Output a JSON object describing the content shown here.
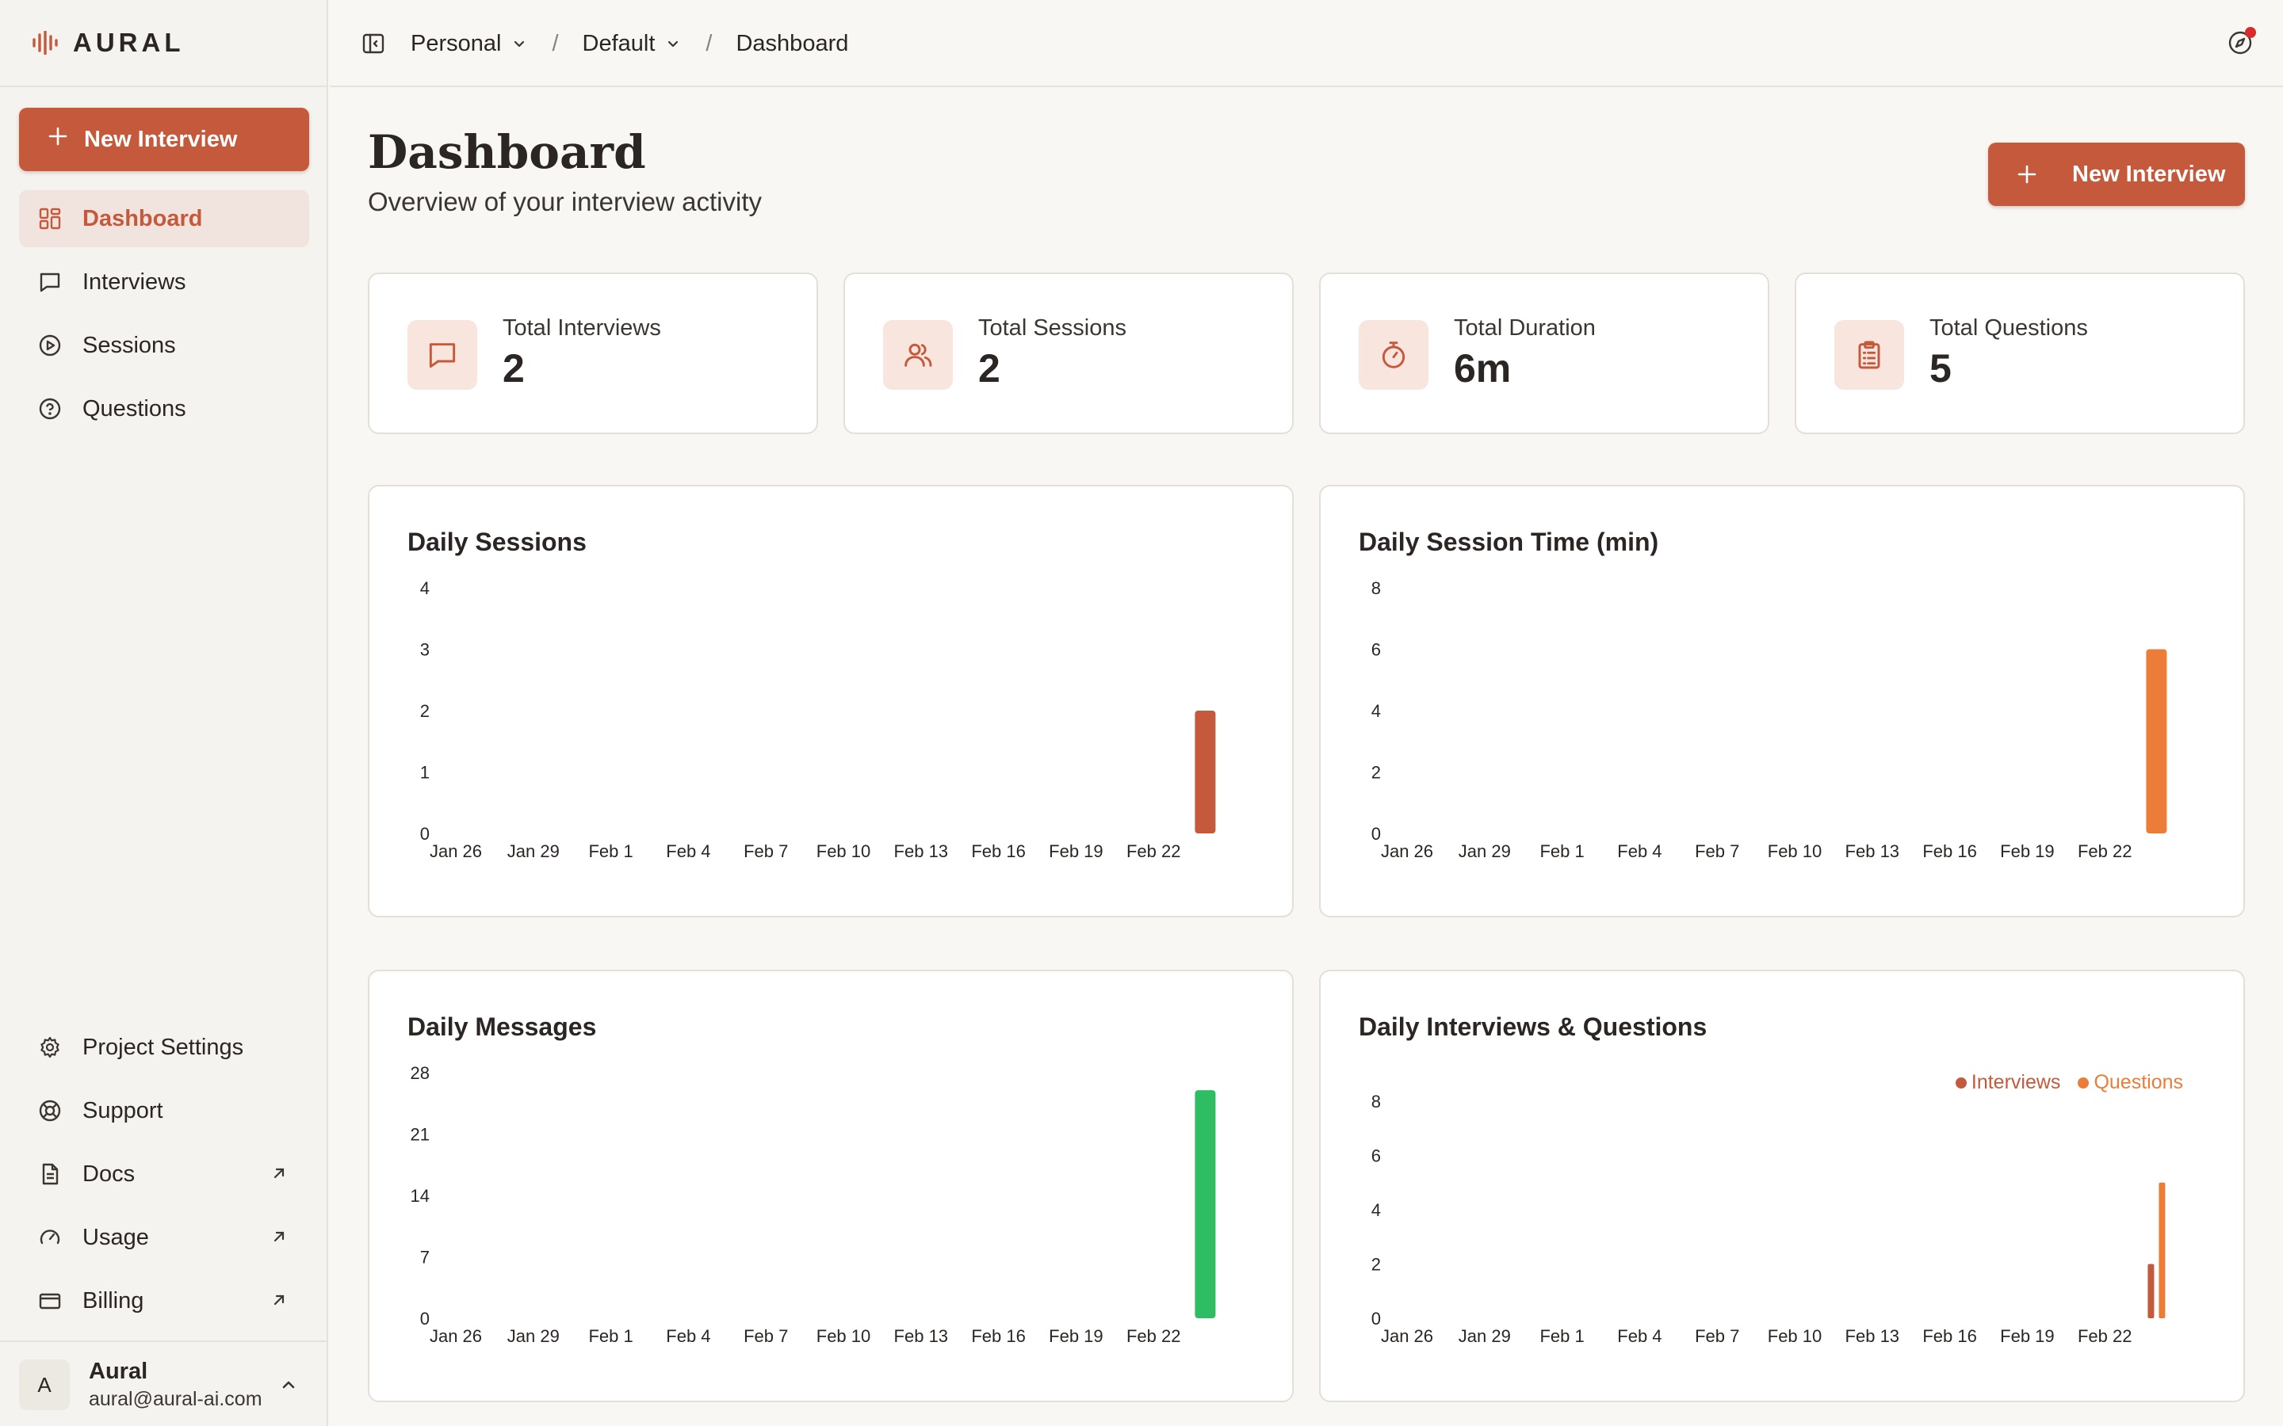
{
  "app": {
    "logo_text": "AURAL"
  },
  "sidebar": {
    "new_button": "New Interview",
    "nav": [
      {
        "label": "Dashboard",
        "icon": "grid-icon",
        "active": true
      },
      {
        "label": "Interviews",
        "icon": "message-icon"
      },
      {
        "label": "Sessions",
        "icon": "play-circle-icon"
      },
      {
        "label": "Questions",
        "icon": "help-circle-icon"
      }
    ],
    "bottom": [
      {
        "label": "Project Settings",
        "icon": "gear-icon"
      },
      {
        "label": "Support",
        "icon": "lifebuoy-icon"
      },
      {
        "label": "Docs",
        "icon": "document-icon",
        "external": true
      },
      {
        "label": "Usage",
        "icon": "gauge-icon",
        "external": true
      },
      {
        "label": "Billing",
        "icon": "credit-card-icon",
        "external": true
      }
    ],
    "user": {
      "initial": "A",
      "name": "Aural",
      "email": "aural@aural-ai.com"
    }
  },
  "breadcrumb": {
    "workspace": "Personal",
    "project": "Default",
    "page": "Dashboard",
    "separator": "/"
  },
  "header": {
    "title": "Dashboard",
    "subtitle": "Overview of your interview activity",
    "new_button": "New Interview"
  },
  "stats": [
    {
      "label": "Total Interviews",
      "value": "2",
      "icon": "message-icon"
    },
    {
      "label": "Total Sessions",
      "value": "2",
      "icon": "users-icon"
    },
    {
      "label": "Total Duration",
      "value": "6m",
      "icon": "stopwatch-icon"
    },
    {
      "label": "Total Questions",
      "value": "5",
      "icon": "clipboard-icon"
    }
  ],
  "colors": {
    "accent": "#c45a3b",
    "orange": "#ec7d39",
    "green": "#2ebd62"
  },
  "chart_data": [
    {
      "type": "bar",
      "title": "Daily Sessions",
      "xticks": [
        "Jan 26",
        "Jan 29",
        "Feb 1",
        "Feb 4",
        "Feb 7",
        "Feb 10",
        "Feb 13",
        "Feb 16",
        "Feb 19",
        "Feb 22"
      ],
      "yticks": [
        0,
        1,
        2,
        3,
        4
      ],
      "ylim": [
        0,
        4
      ],
      "series": [
        {
          "values": [
            {
              "x": "Feb 24",
              "y": 2
            }
          ],
          "color": "#c45a3b"
        }
      ],
      "grid": false
    },
    {
      "type": "bar",
      "title": "Daily Session Time (min)",
      "xticks": [
        "Jan 26",
        "Jan 29",
        "Feb 1",
        "Feb 4",
        "Feb 7",
        "Feb 10",
        "Feb 13",
        "Feb 16",
        "Feb 19",
        "Feb 22"
      ],
      "yticks": [
        0,
        2,
        4,
        6,
        8
      ],
      "ylim": [
        0,
        8
      ],
      "series": [
        {
          "values": [
            {
              "x": "Feb 24",
              "y": 6
            }
          ],
          "color": "#ec7d39"
        }
      ],
      "grid": false
    },
    {
      "type": "bar",
      "title": "Daily Messages",
      "xticks": [
        "Jan 26",
        "Jan 29",
        "Feb 1",
        "Feb 4",
        "Feb 7",
        "Feb 10",
        "Feb 13",
        "Feb 16",
        "Feb 19",
        "Feb 22"
      ],
      "yticks": [
        0,
        7,
        14,
        21,
        28
      ],
      "ylim": [
        0,
        28
      ],
      "series": [
        {
          "values": [
            {
              "x": "Feb 24",
              "y": 26
            }
          ],
          "color": "#2ebd62"
        }
      ],
      "grid": false
    },
    {
      "type": "bar",
      "title": "Daily Interviews & Questions",
      "xticks": [
        "Jan 26",
        "Jan 29",
        "Feb 1",
        "Feb 4",
        "Feb 7",
        "Feb 10",
        "Feb 13",
        "Feb 16",
        "Feb 19",
        "Feb 22"
      ],
      "yticks": [
        0,
        2,
        4,
        6,
        8
      ],
      "ylim": [
        0,
        8
      ],
      "legend": "top-right",
      "series": [
        {
          "name": "Interviews",
          "values": [
            {
              "x": "Feb 24",
              "y": 2
            }
          ],
          "color": "#c45a3b"
        },
        {
          "name": "Questions",
          "values": [
            {
              "x": "Feb 24",
              "y": 5
            }
          ],
          "color": "#ec7d39"
        }
      ],
      "grid": false
    }
  ]
}
